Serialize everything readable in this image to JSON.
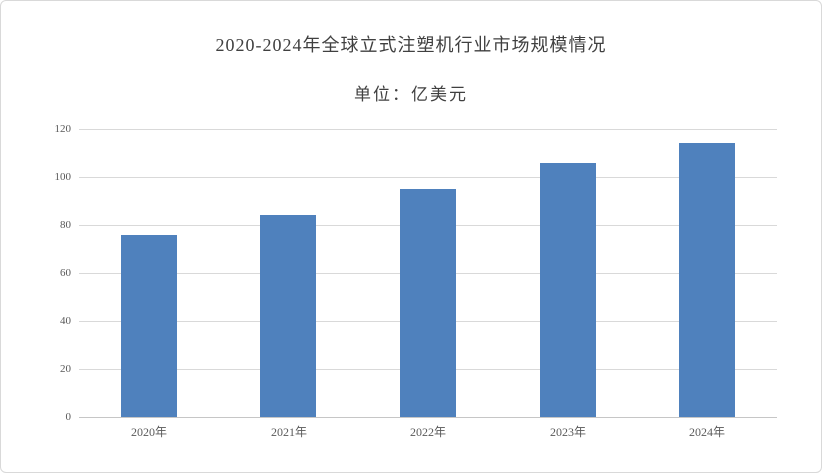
{
  "chart": {
    "title": "2020-2024年全球立式注塑机行业市场规模情况",
    "subtitle": "单位：亿美元"
  },
  "chart_data": {
    "type": "bar",
    "title": "2020-2024年全球立式注塑机行业市场规模情况",
    "subtitle": "单位：亿美元",
    "categories": [
      "2020年",
      "2021年",
      "2022年",
      "2023年",
      "2024年"
    ],
    "values": [
      76,
      84,
      95,
      106,
      114
    ],
    "xlabel": "",
    "ylabel": "",
    "ylim": [
      0,
      120
    ],
    "yticks": [
      0,
      20,
      40,
      60,
      80,
      100,
      120
    ],
    "grid": true,
    "legend": false,
    "colors": {
      "bar": "#4F81BD",
      "gridline": "#D9D9D9",
      "axis_line": "#C6C6C6",
      "tick_label": "#595959",
      "title_text": "#404040",
      "panel_border": "#D9D9D9",
      "background": "#FFFFFF"
    }
  }
}
